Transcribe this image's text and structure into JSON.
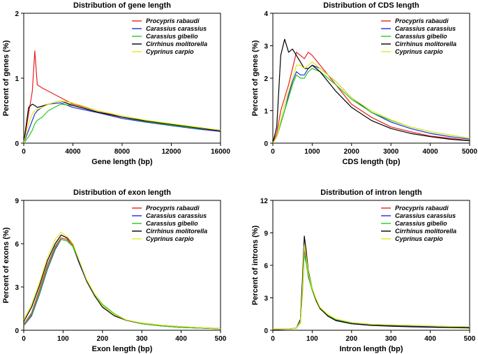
{
  "series_names": [
    "Procypris rabaudi",
    "Carassius carassius",
    "Carassius gibelio",
    "Cirrhinus molitorella",
    "Cyprinus carpio"
  ],
  "series_colors": [
    "#e8211d",
    "#1d2ee0",
    "#27c81f",
    "#000000",
    "#e3e81c"
  ],
  "chart_data": [
    {
      "type": "line",
      "title": "Distribution of gene length",
      "xlabel": "Gene length (bp)",
      "ylabel": "Percent of genes (%)",
      "xlim": [
        0,
        16000
      ],
      "ylim": [
        0,
        2
      ],
      "xticks": [
        0,
        4000,
        8000,
        12000,
        16000
      ],
      "yticks": [
        0,
        1,
        2
      ],
      "legend_position": "top-right",
      "x": [
        0,
        400,
        700,
        900,
        1100,
        1500,
        2000,
        3000,
        4000,
        6000,
        8000,
        10000,
        12000,
        14000,
        16000
      ],
      "series": [
        {
          "name": "Procypris rabaudi",
          "values": [
            0,
            0.45,
            0.8,
            1.42,
            0.9,
            0.85,
            0.8,
            0.7,
            0.6,
            0.5,
            0.4,
            0.33,
            0.28,
            0.23,
            0.18
          ]
        },
        {
          "name": "Carassius carassius",
          "values": [
            0,
            0.2,
            0.35,
            0.45,
            0.5,
            0.55,
            0.6,
            0.62,
            0.55,
            0.47,
            0.38,
            0.32,
            0.27,
            0.22,
            0.18
          ]
        },
        {
          "name": "Carassius gibelio",
          "values": [
            0,
            0.1,
            0.2,
            0.3,
            0.35,
            0.4,
            0.5,
            0.6,
            0.58,
            0.48,
            0.4,
            0.33,
            0.28,
            0.23,
            0.2
          ]
        },
        {
          "name": "Cirrhinus molitorella",
          "values": [
            0,
            0.55,
            0.6,
            0.58,
            0.55,
            0.57,
            0.6,
            0.65,
            0.58,
            0.48,
            0.4,
            0.34,
            0.29,
            0.24,
            0.19
          ]
        },
        {
          "name": "Cyprinus carpio",
          "values": [
            0,
            0.3,
            0.45,
            0.5,
            0.52,
            0.55,
            0.6,
            0.65,
            0.62,
            0.5,
            0.42,
            0.35,
            0.3,
            0.25,
            0.2
          ]
        }
      ]
    },
    {
      "type": "line",
      "title": "Distribution of CDS length",
      "xlabel": "CDS length (bp)",
      "ylabel": "Percent of genes (%)",
      "xlim": [
        0,
        5000
      ],
      "ylim": [
        0,
        4
      ],
      "xticks": [
        0,
        1000,
        2000,
        3000,
        4000,
        5000
      ],
      "yticks": [
        0,
        1,
        2,
        3,
        4
      ],
      "legend_position": "top-right",
      "x": [
        0,
        100,
        200,
        300,
        400,
        500,
        600,
        700,
        800,
        900,
        1000,
        1200,
        1400,
        1600,
        2000,
        2500,
        3000,
        3500,
        4000,
        4500,
        5000
      ],
      "series": [
        {
          "name": "Procypris rabaudi",
          "values": [
            0,
            0.3,
            1.0,
            1.4,
            1.8,
            2.3,
            2.8,
            2.7,
            2.6,
            2.8,
            2.7,
            2.4,
            2.1,
            1.8,
            1.2,
            0.8,
            0.5,
            0.35,
            0.22,
            0.15,
            0.08
          ]
        },
        {
          "name": "Carassius carassius",
          "values": [
            0,
            0.2,
            0.6,
            1.0,
            1.5,
            1.9,
            2.2,
            2.1,
            2.1,
            2.3,
            2.4,
            2.3,
            2.1,
            1.9,
            1.4,
            0.95,
            0.65,
            0.45,
            0.3,
            0.2,
            0.12
          ]
        },
        {
          "name": "Carassius gibelio",
          "values": [
            0,
            0.2,
            0.6,
            1.0,
            1.4,
            1.8,
            2.1,
            2.0,
            2.0,
            2.2,
            2.3,
            2.2,
            2.0,
            1.8,
            1.35,
            0.95,
            0.7,
            0.5,
            0.35,
            0.25,
            0.15
          ]
        },
        {
          "name": "Cirrhinus molitorella",
          "values": [
            0,
            0.5,
            2.7,
            3.2,
            2.8,
            2.9,
            2.7,
            2.5,
            2.3,
            2.3,
            2.4,
            2.2,
            1.9,
            1.6,
            1.1,
            0.7,
            0.45,
            0.3,
            0.2,
            0.12,
            0.07
          ]
        },
        {
          "name": "Cyprinus carpio",
          "values": [
            0,
            0.2,
            0.7,
            1.2,
            1.6,
            2.0,
            2.4,
            2.4,
            2.3,
            2.4,
            2.5,
            2.3,
            2.1,
            1.9,
            1.4,
            1.0,
            0.72,
            0.5,
            0.35,
            0.25,
            0.15
          ]
        }
      ]
    },
    {
      "type": "line",
      "title": "Distribution of exon length",
      "xlabel": "Exon length (bp)",
      "ylabel": "Percent of exons (%)",
      "xlim": [
        0,
        500
      ],
      "ylim": [
        0,
        9
      ],
      "xticks": [
        0,
        100,
        200,
        300,
        400,
        500
      ],
      "yticks": [
        0,
        3,
        6,
        9
      ],
      "legend_position": "top-right",
      "x": [
        0,
        20,
        40,
        60,
        80,
        95,
        110,
        125,
        140,
        160,
        180,
        200,
        230,
        260,
        300,
        350,
        400,
        450,
        500
      ],
      "series": [
        {
          "name": "Procypris rabaudi",
          "values": [
            0.4,
            1.2,
            2.8,
            4.5,
            5.8,
            6.4,
            6.3,
            5.9,
            4.8,
            3.5,
            2.5,
            1.7,
            1.1,
            0.7,
            0.45,
            0.3,
            0.2,
            0.15,
            0.1
          ]
        },
        {
          "name": "Carassius carassius",
          "values": [
            0.3,
            1.0,
            2.5,
            4.2,
            5.6,
            6.3,
            6.2,
            5.8,
            4.7,
            3.4,
            2.4,
            1.7,
            1.1,
            0.7,
            0.45,
            0.3,
            0.2,
            0.15,
            0.1
          ]
        },
        {
          "name": "Carassius gibelio",
          "values": [
            0.3,
            1.1,
            2.6,
            4.3,
            5.7,
            6.3,
            6.2,
            5.8,
            4.8,
            3.5,
            2.5,
            1.8,
            1.15,
            0.72,
            0.45,
            0.3,
            0.2,
            0.15,
            0.1
          ]
        },
        {
          "name": "Cirrhinus molitorella",
          "values": [
            0.6,
            1.6,
            3.1,
            4.8,
            6.0,
            6.6,
            6.4,
            6.0,
            4.8,
            3.4,
            2.4,
            1.6,
            1.0,
            0.7,
            0.5,
            0.35,
            0.25,
            0.18,
            0.12
          ]
        },
        {
          "name": "Cyprinus carpio",
          "values": [
            0.7,
            1.8,
            3.3,
            5.0,
            6.3,
            6.8,
            6.5,
            6.0,
            4.9,
            3.5,
            2.5,
            1.7,
            1.1,
            0.72,
            0.5,
            0.35,
            0.25,
            0.18,
            0.12
          ]
        }
      ]
    },
    {
      "type": "line",
      "title": "Distribution of intron length",
      "xlabel": "Intron length (bp)",
      "ylabel": "Percent of introns (%)",
      "xlim": [
        0,
        500
      ],
      "ylim": [
        0,
        12
      ],
      "xticks": [
        0,
        100,
        200,
        300,
        400,
        500
      ],
      "yticks": [
        0,
        3,
        6,
        9,
        12
      ],
      "legend_position": "top-right",
      "x": [
        0,
        40,
        60,
        70,
        75,
        80,
        85,
        90,
        100,
        110,
        120,
        140,
        160,
        200,
        250,
        300,
        350,
        400,
        450,
        500
      ],
      "series": [
        {
          "name": "Procypris rabaudi",
          "values": [
            0.1,
            0.1,
            0.2,
            0.8,
            3.5,
            7.5,
            6.5,
            5.2,
            3.8,
            2.8,
            2.1,
            1.4,
            1.0,
            0.7,
            0.5,
            0.45,
            0.4,
            0.35,
            0.3,
            0.3
          ]
        },
        {
          "name": "Carassius carassius",
          "values": [
            0.1,
            0.1,
            0.2,
            0.8,
            3.5,
            7.2,
            6.4,
            5.0,
            3.7,
            2.7,
            2.0,
            1.35,
            0.95,
            0.68,
            0.5,
            0.45,
            0.4,
            0.35,
            0.3,
            0.28
          ]
        },
        {
          "name": "Carassius gibelio",
          "values": [
            0.1,
            0.1,
            0.2,
            0.7,
            3.2,
            7.0,
            6.2,
            4.9,
            3.7,
            2.7,
            2.0,
            1.4,
            1.0,
            0.7,
            0.55,
            0.5,
            0.45,
            0.4,
            0.35,
            0.32
          ]
        },
        {
          "name": "Cirrhinus molitorella",
          "values": [
            0.05,
            0.1,
            0.2,
            1.0,
            4.5,
            8.7,
            7.3,
            5.5,
            3.9,
            2.8,
            2.0,
            1.3,
            0.9,
            0.6,
            0.45,
            0.38,
            0.32,
            0.28,
            0.25,
            0.22
          ]
        },
        {
          "name": "Cyprinus carpio",
          "values": [
            0.1,
            0.1,
            0.2,
            0.8,
            3.5,
            7.8,
            6.8,
            5.3,
            3.9,
            2.9,
            2.1,
            1.45,
            1.05,
            0.72,
            0.55,
            0.5,
            0.45,
            0.4,
            0.35,
            0.33
          ]
        }
      ]
    }
  ]
}
